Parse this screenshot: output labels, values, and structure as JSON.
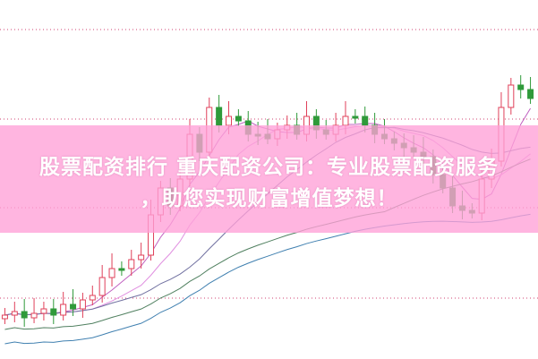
{
  "banner": {
    "title_line1": "股票配资排行 重庆配资公司：专业股票配资服务",
    "title_line2": "，助您实现财富增值梦想！"
  },
  "colors": {
    "up_candle": "#e0405a",
    "down_candle": "#2f9a3a",
    "banner": "#ffa0d7",
    "gridline": "#d04070"
  },
  "icons": []
}
